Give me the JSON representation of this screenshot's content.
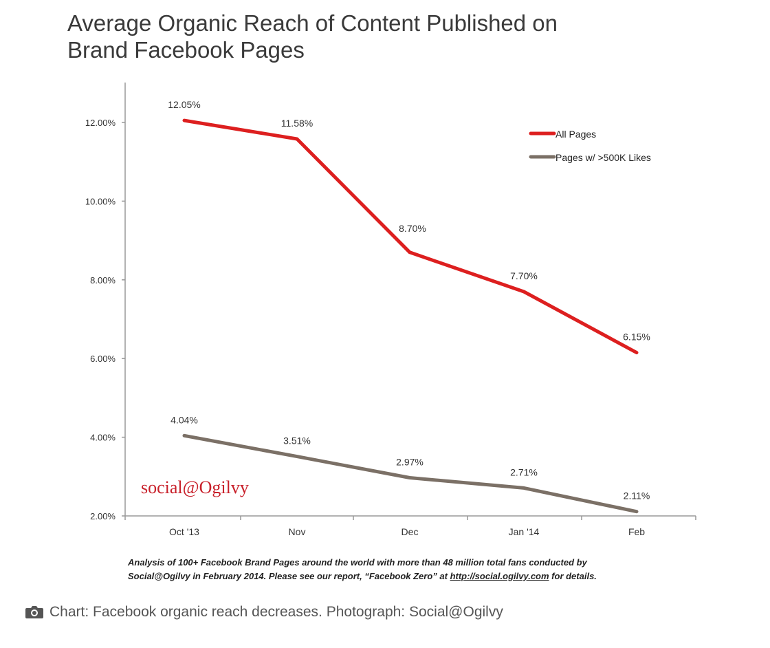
{
  "chart_data": {
    "type": "line",
    "title_lines": [
      "Average Organic Reach of Content Published on",
      "Brand Facebook Pages"
    ],
    "categories": [
      "Oct '13",
      "Nov",
      "Dec",
      "Jan '14",
      "Feb"
    ],
    "series": [
      {
        "name": "All Pages",
        "values": [
          12.05,
          11.58,
          8.7,
          7.7,
          6.15
        ],
        "labels": [
          "12.05%",
          "11.58%",
          "8.70%",
          "7.70%",
          "6.15%"
        ],
        "color": "#dd1f1f"
      },
      {
        "name": "Pages w/ >500K Likes",
        "values": [
          4.04,
          3.51,
          2.97,
          2.71,
          2.11
        ],
        "labels": [
          "4.04%",
          "3.51%",
          "2.97%",
          "2.71%",
          "2.11%"
        ],
        "color": "#7b7066"
      }
    ],
    "yticks": [
      2,
      4,
      6,
      8,
      10,
      12
    ],
    "ytick_labels": [
      "2.00%",
      "4.00%",
      "6.00%",
      "8.00%",
      "10.00%",
      "12.00%"
    ],
    "ylim": [
      2,
      13
    ],
    "grid": false,
    "legend_position": "top-right",
    "watermark": "social@Ogilvy"
  },
  "footnote": {
    "line1": "Analysis of 100+ Facebook Brand Pages around the world with more than 48 million total fans conducted by",
    "line2_prefix": "Social@Ogilvy in February 2014. Please see our report, “Facebook Zero” at ",
    "line2_link": "http://social.ogilvy.com",
    "line2_suffix": " for details."
  },
  "caption": {
    "icon": "camera-icon",
    "text": "Chart: Facebook organic reach decreases. Photograph: Social@Ogilvy"
  }
}
